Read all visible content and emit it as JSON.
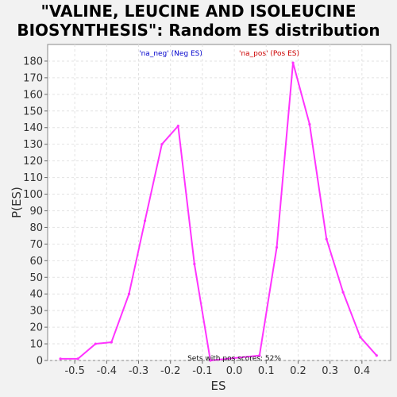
{
  "chart_data": {
    "type": "line",
    "title_lines": [
      "\"VALINE, LEUCINE AND ISOLEUCINE",
      "BIOSYNTHESIS\": Random ES distribution"
    ],
    "xlabel": "ES",
    "ylabel": "P(ES)",
    "xlim": [
      -0.585,
      0.49
    ],
    "ylim": [
      0,
      190
    ],
    "xticks": [
      -0.5,
      -0.4,
      -0.3,
      -0.2,
      -0.1,
      0.0,
      0.1,
      0.2,
      0.3,
      0.4
    ],
    "xtick_labels": [
      "-0.5",
      "-0.4",
      "-0.3",
      "-0.2",
      "-0.1",
      "0.0",
      "0.1",
      "0.2",
      "0.3",
      "0.4"
    ],
    "yticks": [
      0,
      10,
      20,
      30,
      40,
      50,
      60,
      70,
      80,
      90,
      100,
      110,
      120,
      130,
      140,
      150,
      160,
      170,
      180
    ],
    "ytick_labels": [
      "0",
      "10",
      "20",
      "30",
      "40",
      "50",
      "60",
      "70",
      "80",
      "90",
      "100",
      "110",
      "120",
      "130",
      "140",
      "150",
      "160",
      "170",
      "180"
    ],
    "grid": true,
    "legend": [
      {
        "label": "'na_neg' (Neg ES)",
        "color": "#0000cc"
      },
      {
        "label": "'na_pos' (Pos ES)",
        "color": "#cc0000"
      }
    ],
    "series": [
      {
        "name": "distribution",
        "color": "#ff33ff",
        "x": [
          -0.545,
          -0.49,
          -0.435,
          -0.385,
          -0.33,
          -0.28,
          -0.227,
          -0.176,
          -0.125,
          -0.075,
          0.079,
          0.133,
          0.184,
          0.236,
          0.289,
          0.341,
          0.395,
          0.446
        ],
        "y": [
          1,
          1,
          10,
          11,
          40,
          84,
          130,
          141,
          58,
          0,
          3,
          68,
          179,
          142,
          73,
          41,
          14,
          3
        ]
      }
    ],
    "annotation": "Sets with pos scores: 52%"
  }
}
